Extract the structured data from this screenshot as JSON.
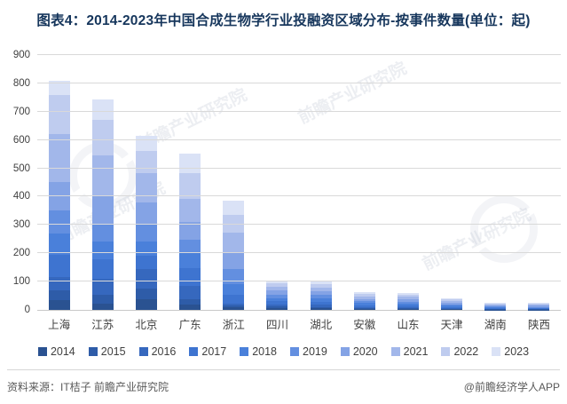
{
  "header": {
    "title": "图表4：2014-2023年中国合成生物学行业投融资区域分布-按事件数量(单位：起)"
  },
  "chart_data": {
    "type": "bar",
    "stacked": true,
    "title": "图表4：2014-2023年中国合成生物学行业投融资区域分布-按事件数量(单位：起)",
    "categories": [
      "上海",
      "江苏",
      "北京",
      "广东",
      "浙江",
      "四川",
      "湖北",
      "安徽",
      "山东",
      "天津",
      "湖南",
      "陕西"
    ],
    "series": [
      {
        "name": "2014",
        "color": "#2A5291",
        "values": [
          33,
          23,
          39,
          18,
          8,
          6,
          5,
          3,
          3,
          2,
          1,
          1
        ]
      },
      {
        "name": "2015",
        "color": "#2E5CA8",
        "values": [
          37,
          31,
          36,
          21,
          7,
          6,
          6,
          3,
          3,
          2,
          1,
          1
        ]
      },
      {
        "name": "2016",
        "color": "#3668BE",
        "values": [
          47,
          56,
          68,
          47,
          8,
          8,
          8,
          5,
          4,
          3,
          2,
          2
        ]
      },
      {
        "name": "2017",
        "color": "#3E74D0",
        "values": [
          78,
          70,
          49,
          60,
          29,
          10,
          10,
          6,
          6,
          4,
          2,
          2
        ]
      },
      {
        "name": "2018",
        "color": "#4A80DA",
        "values": [
          74,
          62,
          50,
          57,
          39,
          12,
          11,
          7,
          6,
          4,
          3,
          2
        ]
      },
      {
        "name": "2019",
        "color": "#638FE0",
        "values": [
          83,
          58,
          63,
          45,
          55,
          12,
          12,
          7,
          7,
          5,
          3,
          3
        ]
      },
      {
        "name": "2020",
        "color": "#84A3E5",
        "values": [
          99,
          104,
          75,
          62,
          55,
          14,
          13,
          8,
          8,
          6,
          4,
          4
        ]
      },
      {
        "name": "2021",
        "color": "#A2B7EA",
        "values": [
          170,
          142,
          102,
          81,
          73,
          15,
          14,
          9,
          9,
          6,
          4,
          4
        ]
      },
      {
        "name": "2022",
        "color": "#BFCCEF",
        "values": [
          138,
          125,
          79,
          91,
          63,
          12,
          12,
          8,
          8,
          5,
          3,
          3
        ]
      },
      {
        "name": "2023",
        "color": "#DAE2F6",
        "values": [
          51,
          74,
          53,
          69,
          50,
          10,
          10,
          7,
          6,
          3,
          3,
          3
        ]
      }
    ],
    "approx_totals": [
      810,
      745,
      614,
      551,
      387,
      105,
      101,
      63,
      60,
      40,
      26,
      25
    ],
    "ylim": [
      0,
      900
    ],
    "ytick_step": 100,
    "grid": true,
    "legend_position": "bottom",
    "xlabel": "",
    "ylabel": ""
  },
  "footer": {
    "source": "资料来源：IT桔子 前瞻产业研究院",
    "credit": "@前瞻经济学人APP"
  },
  "watermark": {
    "text": "前瞻产业研究院"
  },
  "colors": {
    "title": "#16365C",
    "axis_label": "#404040",
    "gridline": "#D9D9D9",
    "footer_text": "#595959"
  }
}
